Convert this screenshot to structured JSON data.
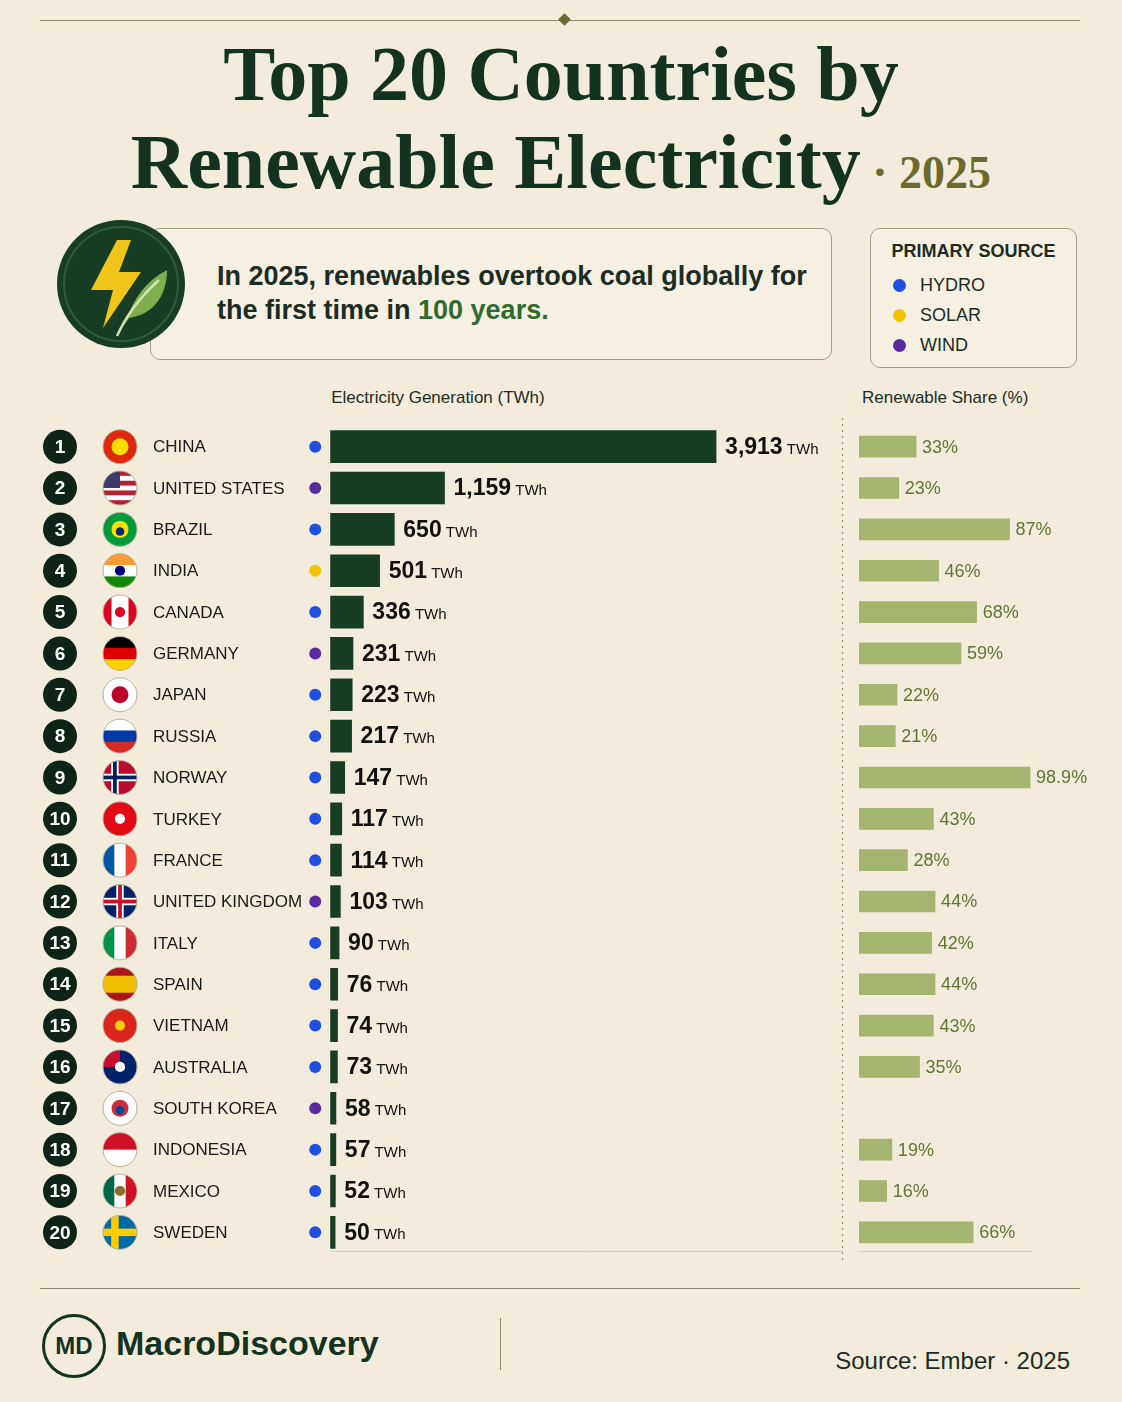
{
  "header": {
    "title_lines": [
      "Top 20 Countries by",
      "Renewable Electricity"
    ],
    "year_label": "· 2025"
  },
  "callout": {
    "text": "In 2025, renewables overtook coal globally for the first time in",
    "highlight": "100 years."
  },
  "legend_box": {
    "title": "PRIMARY SOURCE",
    "items": [
      {
        "name": "HYDRO",
        "color": "#1f4fe0"
      },
      {
        "name": "SOLAR",
        "color": "#f2c200"
      },
      {
        "name": "WIND",
        "color": "#5b2a9e"
      }
    ]
  },
  "rows": {
    "ranks": [
      1,
      2,
      3,
      4,
      5,
      6,
      7,
      8,
      9,
      10,
      11,
      12,
      13,
      14,
      15,
      16,
      17,
      18,
      19,
      20
    ],
    "primary_source": [
      "HYDRO",
      "WIND",
      "HYDRO",
      "SOLAR",
      "HYDRO",
      "WIND",
      "HYDRO",
      "HYDRO",
      "HYDRO",
      "HYDRO",
      "HYDRO",
      "WIND",
      "HYDRO",
      "HYDRO",
      "HYDRO",
      "HYDRO",
      "WIND",
      "HYDRO",
      "HYDRO",
      "HYDRO"
    ]
  },
  "chart_data": [
    {
      "type": "bar",
      "title": "Electricity Generation (TWh)",
      "orientation": "horizontal",
      "categories": [
        "CHINA",
        "UNITED STATES",
        "BRAZIL",
        "INDIA",
        "CANADA",
        "GERMANY",
        "JAPAN",
        "RUSSIA",
        "NORWAY",
        "TURKEY",
        "FRANCE",
        "UNITED KINGDOM",
        "ITALY",
        "SPAIN",
        "VIETNAM",
        "AUSTRALIA",
        "SOUTH KOREA",
        "INDONESIA",
        "MEXICO",
        "SWEDEN"
      ],
      "values": [
        3913,
        1159,
        650,
        501,
        336,
        231,
        223,
        217,
        147,
        117,
        114,
        103,
        90,
        76,
        74,
        73,
        58,
        57,
        52,
        50
      ],
      "value_labels": [
        "3,913 TWh",
        "1,159 TWh",
        "650 TWh",
        "501 TWh",
        "336 TWh",
        "231 TWh",
        "223 TWh",
        "217 TWh",
        "147 TWh",
        "117 TWh",
        "114 TWh",
        "103 TWh",
        "90 TWh",
        "76 TWh",
        "74 TWh",
        "73 TWh",
        "58 TWh",
        "57 TWh",
        "52 TWh",
        "50 TWh"
      ],
      "color": "#173d25",
      "xlim": [
        0,
        5200
      ],
      "tick_labels": "y",
      "data_labels": true,
      "grid": false
    },
    {
      "type": "bar",
      "title": "Renewable Share (%)",
      "orientation": "horizontal",
      "categories": [
        "CHINA",
        "UNITED STATES",
        "BRAZIL",
        "INDIA",
        "CANADA",
        "GERMANY",
        "JAPAN",
        "RUSSIA",
        "NORWAY",
        "TURKEY",
        "FRANCE",
        "UNITED KINGDOM",
        "ITALY",
        "SPAIN",
        "VIETNAM",
        "AUSTRALIA",
        "SOUTH KOREA",
        "INDONESIA",
        "MEXICO",
        "SWEDEN"
      ],
      "values": [
        33,
        23,
        87,
        46,
        68,
        59,
        22,
        21,
        98.9,
        43,
        28,
        44,
        42,
        44,
        43,
        35,
        null,
        19,
        16,
        66
      ],
      "value_labels": [
        "33%",
        "23%",
        "87%",
        "46%",
        "68%",
        "59%",
        "22%",
        "21%",
        "98.9%",
        "43%",
        "28%",
        "44%",
        "42%",
        "44%",
        "43%",
        "35%",
        null,
        "19%",
        "16%",
        "66%"
      ],
      "color": "#a3b56f",
      "xlim": [
        0,
        100
      ],
      "tick_labels": false,
      "data_labels": true,
      "grid": false
    }
  ],
  "footer": {
    "logo_text": "MD",
    "brand": "MacroDiscovery",
    "source": "Source: Ember · 2025"
  }
}
